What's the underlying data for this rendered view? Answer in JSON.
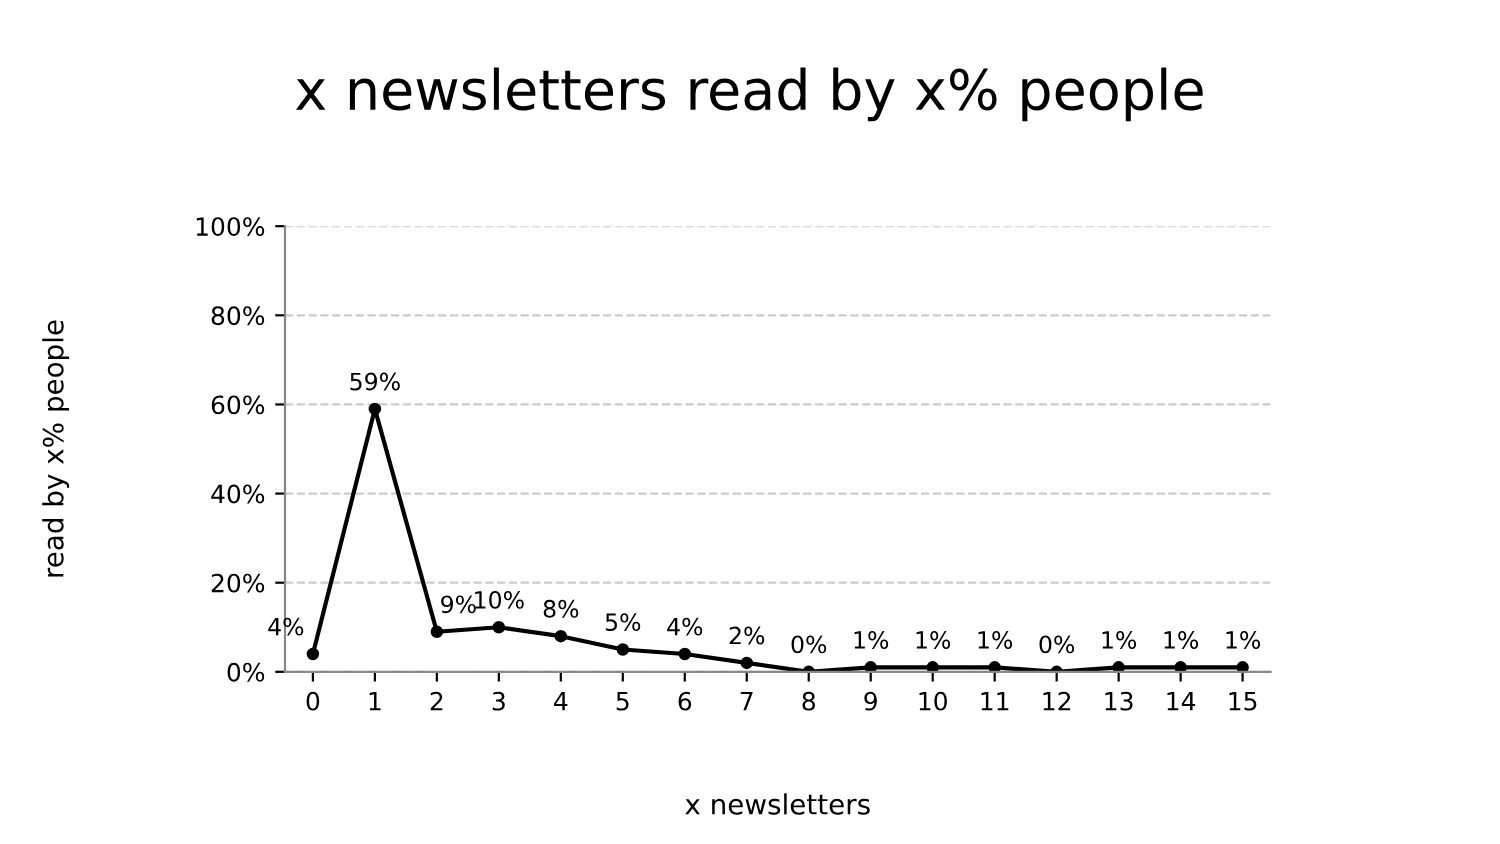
{
  "chart_data": {
    "type": "line",
    "title": "x newsletters read by x% people",
    "xlabel": "x newsletters",
    "ylabel": "read by x% people",
    "categories": [
      "0",
      "1",
      "2",
      "3",
      "4",
      "5",
      "6",
      "7",
      "8",
      "9",
      "10",
      "11",
      "12",
      "13",
      "14",
      "15"
    ],
    "series": [
      {
        "color": "#000000",
        "values": [
          4,
          59,
          9,
          10,
          8,
          5,
          4,
          2,
          0,
          1,
          1,
          1,
          0,
          1,
          1,
          1
        ]
      }
    ],
    "ylim": [
      0,
      100
    ],
    "yticks": [
      {
        "value": 0,
        "label": "0%"
      },
      {
        "value": 20,
        "label": "20%"
      },
      {
        "value": 40,
        "label": "40%"
      },
      {
        "value": 60,
        "label": "60%"
      },
      {
        "value": 80,
        "label": "80%"
      },
      {
        "value": 100,
        "label": "100%"
      }
    ],
    "value_labels": [
      "4%",
      "59%",
      "9%",
      "10%",
      "8%",
      "5%",
      "4%",
      "2%",
      "0%",
      "1%",
      "1%",
      "1%",
      "0%",
      "1%",
      "1%",
      "1%"
    ],
    "grid": "y",
    "marker": "circle",
    "line_style": "solid"
  }
}
